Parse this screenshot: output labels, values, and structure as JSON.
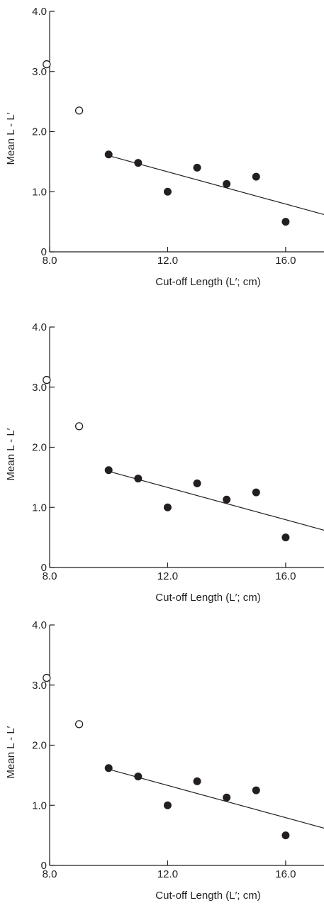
{
  "chart_data": [
    {
      "type": "scatter",
      "xlabel": "Cut-off Length (L′; cm)",
      "ylabel": "Mean L - L′",
      "xlim": [
        8.0,
        17.3
      ],
      "ylim": [
        0,
        4.0
      ],
      "x_ticks": [
        "8.0",
        "12.0",
        "16.0"
      ],
      "y_ticks": [
        "0",
        "1.0",
        "2.0",
        "3.0",
        "4.0"
      ],
      "series": [
        {
          "marker": "open-circle",
          "points": [
            [
              7.9,
              3.12
            ],
            [
              9.0,
              2.35
            ]
          ]
        },
        {
          "marker": "filled-circle",
          "points": [
            [
              10.0,
              1.62
            ],
            [
              11.0,
              1.48
            ],
            [
              12.0,
              1.0
            ],
            [
              13.0,
              1.4
            ],
            [
              14.0,
              1.13
            ],
            [
              15.0,
              1.25
            ],
            [
              16.0,
              0.5
            ]
          ]
        }
      ],
      "fit_line": {
        "x": [
          10.0,
          17.3
        ],
        "y": [
          1.6,
          0.62
        ]
      }
    },
    {
      "type": "scatter",
      "xlabel": "Cut-off Length (L′; cm)",
      "ylabel": "Mean L - L′",
      "xlim": [
        8.0,
        17.3
      ],
      "ylim": [
        0,
        4.0
      ],
      "x_ticks": [
        "8.0",
        "12.0",
        "16.0"
      ],
      "y_ticks": [
        "0",
        "1.0",
        "2.0",
        "3.0",
        "4.0"
      ],
      "series": [
        {
          "marker": "open-circle",
          "points": [
            [
              7.9,
              3.12
            ],
            [
              9.0,
              2.35
            ]
          ]
        },
        {
          "marker": "filled-circle",
          "points": [
            [
              10.0,
              1.62
            ],
            [
              11.0,
              1.48
            ],
            [
              12.0,
              1.0
            ],
            [
              13.0,
              1.4
            ],
            [
              14.0,
              1.13
            ],
            [
              15.0,
              1.25
            ],
            [
              16.0,
              0.5
            ]
          ]
        }
      ],
      "fit_line": {
        "x": [
          10.0,
          17.3
        ],
        "y": [
          1.6,
          0.62
        ]
      }
    },
    {
      "type": "scatter",
      "xlabel": "Cut-off Length (L′; cm)",
      "ylabel": "Mean L - L′",
      "xlim": [
        8.0,
        17.3
      ],
      "ylim": [
        0,
        4.0
      ],
      "x_ticks": [
        "8.0",
        "12.0",
        "16.0"
      ],
      "y_ticks": [
        "0",
        "1.0",
        "2.0",
        "3.0",
        "4.0"
      ],
      "series": [
        {
          "marker": "open-circle",
          "points": [
            [
              7.9,
              3.12
            ],
            [
              9.0,
              2.35
            ]
          ]
        },
        {
          "marker": "filled-circle",
          "points": [
            [
              10.0,
              1.62
            ],
            [
              11.0,
              1.48
            ],
            [
              12.0,
              1.0
            ],
            [
              13.0,
              1.4
            ],
            [
              14.0,
              1.13
            ],
            [
              15.0,
              1.25
            ],
            [
              16.0,
              0.5
            ]
          ]
        }
      ],
      "fit_line": {
        "x": [
          10.0,
          17.3
        ],
        "y": [
          1.6,
          0.62
        ]
      }
    }
  ]
}
